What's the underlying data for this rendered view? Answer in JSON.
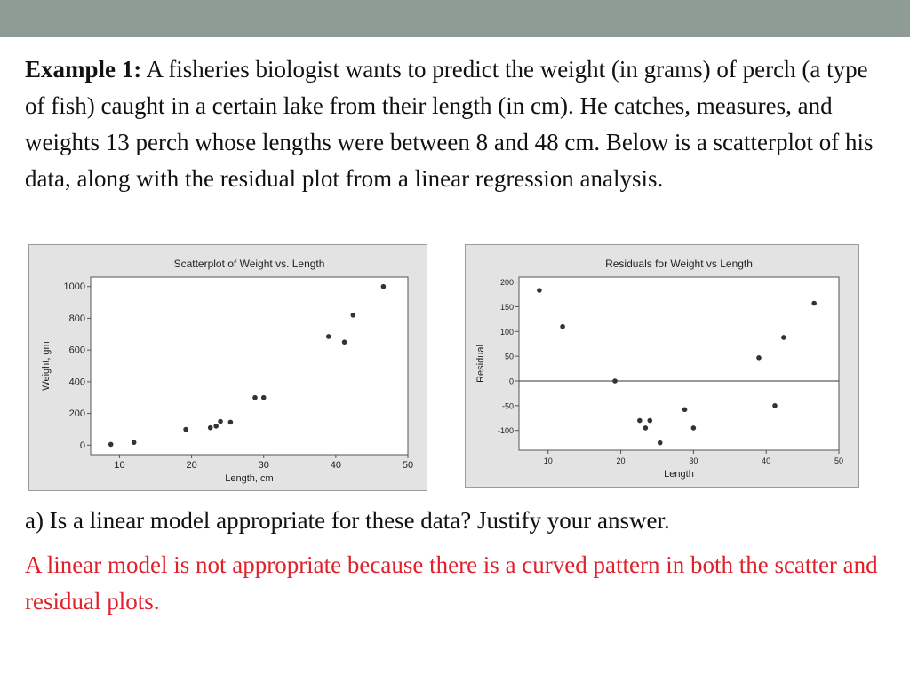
{
  "slide": {
    "intro_label": "Example 1:",
    "intro_text": " A fisheries biologist wants to predict the weight (in grams) of perch (a type of fish) caught in a certain lake from their length (in cm). He catches, measures, and weights 13 perch whose lengths were between 8 and 48 cm.  Below is a scatterplot of his data, along with the residual plot from a linear regression analysis.",
    "question": "a) Is a linear model appropriate for these data?  Justify your answer.",
    "answer": "A linear model is not appropriate because there is a curved pattern in both the scatter and residual plots.",
    "colors": {
      "header_bar": "#8e9c95",
      "answer_text": "#e0202a",
      "chart_bg": "#e3e3e3"
    }
  },
  "chart_data": [
    {
      "type": "scatter",
      "title": "Scatterplot of Weight vs. Length",
      "xlabel": "Length, cm",
      "ylabel": "Weight, gm",
      "xlim": [
        6,
        50
      ],
      "ylim": [
        -60,
        1060
      ],
      "xticks": [
        10,
        20,
        30,
        40,
        50
      ],
      "yticks": [
        0,
        200,
        400,
        600,
        800,
        1000
      ],
      "grid": false,
      "x": [
        8.8,
        12.0,
        19.2,
        22.6,
        23.4,
        24.0,
        25.4,
        28.8,
        30.0,
        39.0,
        41.2,
        42.4,
        46.6
      ],
      "y": [
        5,
        17,
        99,
        110,
        120,
        150,
        145,
        300,
        300,
        685,
        650,
        820,
        1000
      ]
    },
    {
      "type": "scatter",
      "title": "Residuals for Weight vs Length",
      "xlabel": "Length",
      "ylabel": "Residual",
      "xlim": [
        6,
        50
      ],
      "ylim": [
        -140,
        210
      ],
      "xticks": [
        10,
        20,
        30,
        40,
        50
      ],
      "yticks": [
        -100,
        -50,
        0,
        50,
        100,
        150,
        200
      ],
      "reference_line_y": 0,
      "grid": false,
      "x": [
        8.8,
        12.0,
        19.2,
        22.6,
        23.4,
        24.0,
        25.4,
        28.8,
        30.0,
        39.0,
        41.2,
        42.4,
        46.6
      ],
      "y": [
        183,
        110,
        0,
        -80,
        -95,
        -80,
        -125,
        -58,
        -95,
        47,
        -50,
        88,
        157
      ]
    }
  ]
}
